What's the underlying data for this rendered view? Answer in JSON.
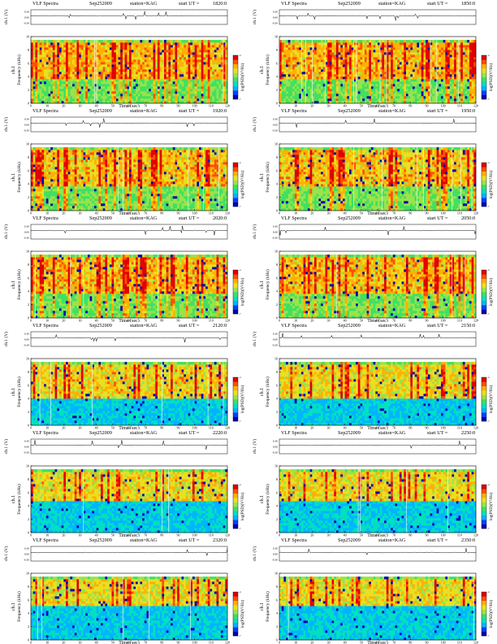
{
  "header": {
    "title": "VLF Spectra",
    "date": "Sep252009",
    "station": "station=KAG",
    "start_prefix": "start  UT  ="
  },
  "labels": {
    "ch1_label": "ch.1 (V)",
    "ylabel_line1": "ch.1",
    "ylabel_line2": "Frequency  (kHz)",
    "xlabel": "Time  (sec)",
    "colorbar_label": "log(PSD)(V²/Hz)"
  },
  "axes": {
    "x_ticks": [
      "0",
      "10",
      "20",
      "30",
      "40",
      "50",
      "60",
      "70",
      "80",
      "90",
      "100",
      "110",
      "120"
    ],
    "y_ticks": [
      "0",
      "2",
      "4",
      "6",
      "8",
      "10"
    ],
    "ch1_ticks": [
      "0.30",
      "0.00",
      "-0.30"
    ],
    "colorbar_ticks": [
      "-7",
      "-4"
    ]
  },
  "colors": {
    "colormap": [
      "#0000b0",
      "#0040ff",
      "#00b4ff",
      "#00e0c0",
      "#40e060",
      "#9ae34a",
      "#e8e020",
      "#ffb000",
      "#ff5000",
      "#e00000"
    ],
    "background": "#ffffff"
  },
  "chart_data": [
    {
      "type": "heatmap",
      "start_ut": "1820:0",
      "column": "left",
      "row": 0,
      "x_range": [
        0,
        120
      ],
      "y_range": [
        0,
        10
      ],
      "ch1_range": [
        -0.3,
        0.3
      ],
      "colorbar_range": [
        -7,
        -4
      ],
      "xlabel": "Time  (sec)",
      "ylabel": "Frequency  (kHz)",
      "band_top_khz": 9.5,
      "activity": 0.92,
      "quiet_floor_khz": 0
    },
    {
      "type": "heatmap",
      "start_ut": "1850:0",
      "column": "right",
      "row": 0,
      "x_range": [
        0,
        120
      ],
      "y_range": [
        0,
        10
      ],
      "ch1_range": [
        -0.3,
        0.3
      ],
      "colorbar_range": [
        -7,
        -4
      ],
      "xlabel": "Time  (sec)",
      "ylabel": "Frequency  (kHz)",
      "band_top_khz": 9.5,
      "activity": 0.9,
      "quiet_floor_khz": 0
    },
    {
      "type": "heatmap",
      "start_ut": "1920:0",
      "column": "left",
      "row": 1,
      "x_range": [
        0,
        120
      ],
      "y_range": [
        0,
        10
      ],
      "ch1_range": [
        -0.3,
        0.3
      ],
      "colorbar_range": [
        -7,
        -4
      ],
      "xlabel": "Time  (sec)",
      "ylabel": "Frequency  (kHz)",
      "band_top_khz": 9.5,
      "activity": 0.8,
      "quiet_floor_khz": 0
    },
    {
      "type": "heatmap",
      "start_ut": "1950:0",
      "column": "right",
      "row": 1,
      "x_range": [
        0,
        120
      ],
      "y_range": [
        0,
        10
      ],
      "ch1_range": [
        -0.3,
        0.3
      ],
      "colorbar_range": [
        -7,
        -4
      ],
      "xlabel": "Time  (sec)",
      "ylabel": "Frequency  (kHz)",
      "band_top_khz": 9.5,
      "activity": 0.78,
      "quiet_floor_khz": 0
    },
    {
      "type": "heatmap",
      "start_ut": "2020:0",
      "column": "left",
      "row": 2,
      "x_range": [
        0,
        120
      ],
      "y_range": [
        0,
        10
      ],
      "ch1_range": [
        -0.3,
        0.3
      ],
      "colorbar_range": [
        -7,
        -4
      ],
      "xlabel": "Time  (sec)",
      "ylabel": "Frequency  (kHz)",
      "band_top_khz": 9.5,
      "activity": 0.82,
      "quiet_floor_khz": 0
    },
    {
      "type": "heatmap",
      "start_ut": "2050:0",
      "column": "right",
      "row": 2,
      "x_range": [
        0,
        120
      ],
      "y_range": [
        0,
        10
      ],
      "ch1_range": [
        -0.3,
        0.3
      ],
      "colorbar_range": [
        -7,
        -4
      ],
      "xlabel": "Time  (sec)",
      "ylabel": "Frequency  (kHz)",
      "band_top_khz": 9.5,
      "activity": 0.85,
      "quiet_floor_khz": 0
    },
    {
      "type": "heatmap",
      "start_ut": "2120:0",
      "column": "left",
      "row": 3,
      "x_range": [
        0,
        120
      ],
      "y_range": [
        0,
        10
      ],
      "ch1_range": [
        -0.3,
        0.3
      ],
      "colorbar_range": [
        -7,
        -4
      ],
      "xlabel": "Time  (sec)",
      "ylabel": "Frequency  (kHz)",
      "band_top_khz": 9.5,
      "activity": 0.65,
      "quiet_floor_khz": 4
    },
    {
      "type": "heatmap",
      "start_ut": "2150:0",
      "column": "right",
      "row": 3,
      "x_range": [
        0,
        120
      ],
      "y_range": [
        0,
        10
      ],
      "ch1_range": [
        -0.3,
        0.3
      ],
      "colorbar_range": [
        -7,
        -4
      ],
      "xlabel": "Time  (sec)",
      "ylabel": "Frequency  (kHz)",
      "band_top_khz": 9.5,
      "activity": 0.55,
      "quiet_floor_khz": 4
    },
    {
      "type": "heatmap",
      "start_ut": "2220:0",
      "column": "left",
      "row": 4,
      "x_range": [
        0,
        120
      ],
      "y_range": [
        0,
        10
      ],
      "ch1_range": [
        -0.3,
        0.3
      ],
      "colorbar_range": [
        -7,
        -4
      ],
      "xlabel": "Time  (sec)",
      "ylabel": "Frequency  (kHz)",
      "band_top_khz": 9.5,
      "activity": 0.58,
      "quiet_floor_khz": 4.5
    },
    {
      "type": "heatmap",
      "start_ut": "2250:0",
      "column": "right",
      "row": 4,
      "x_range": [
        0,
        120
      ],
      "y_range": [
        0,
        10
      ],
      "ch1_range": [
        -0.3,
        0.3
      ],
      "colorbar_range": [
        -7,
        -4
      ],
      "xlabel": "Time  (sec)",
      "ylabel": "Frequency  (kHz)",
      "band_top_khz": 9.5,
      "activity": 0.55,
      "quiet_floor_khz": 4.5
    },
    {
      "type": "heatmap",
      "start_ut": "2320:0",
      "column": "left",
      "row": 5,
      "x_range": [
        0,
        120
      ],
      "y_range": [
        0,
        10
      ],
      "ch1_range": [
        -0.3,
        0.3
      ],
      "colorbar_range": [
        -7,
        -4
      ],
      "xlabel": "Time  (sec)",
      "ylabel": "Frequency  (kHz)",
      "band_top_khz": 9.5,
      "activity": 0.55,
      "quiet_floor_khz": 5
    },
    {
      "type": "heatmap",
      "start_ut": "2350:0",
      "column": "right",
      "row": 5,
      "x_range": [
        0,
        120
      ],
      "y_range": [
        0,
        10
      ],
      "ch1_range": [
        -0.3,
        0.3
      ],
      "colorbar_range": [
        -7,
        -4
      ],
      "xlabel": "Time  (sec)",
      "ylabel": "Frequency  (kHz)",
      "band_top_khz": 9.5,
      "activity": 0.55,
      "quiet_floor_khz": 5
    }
  ]
}
